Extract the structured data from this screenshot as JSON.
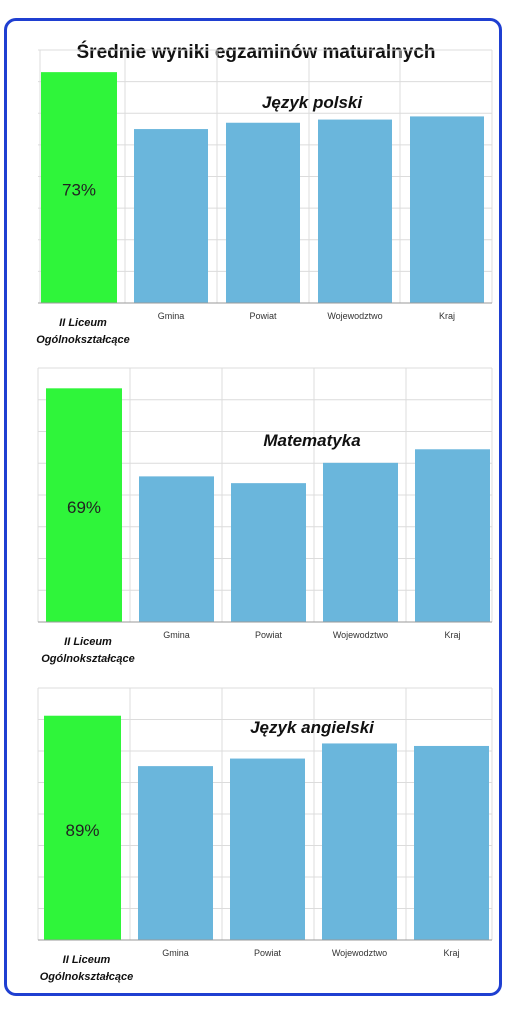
{
  "title": "Średnie wyniki egzaminów maturalnych",
  "colors": {
    "school": "#2ff53a",
    "other": "#6ab6dc",
    "grid": "#dcdcdc",
    "frame": "#1f3fd1"
  },
  "chart_data": [
    {
      "type": "bar",
      "subtitle": "Język polski",
      "categories": [
        "II Liceum Ogólnokształcące",
        "Gmina",
        "Powiat",
        "Wojewodztwo",
        "Kraj"
      ],
      "school_label": [
        "II Liceum",
        "Ogólnokształcące"
      ],
      "value_label": "73%",
      "values": [
        73,
        55,
        57,
        58,
        59
      ],
      "ylim": [
        0,
        80
      ],
      "grid": true
    },
    {
      "type": "bar",
      "subtitle": "Matematyka",
      "categories": [
        "II Liceum Ogólnokształcące",
        "Gmina",
        "Powiat",
        "Wojewodztwo",
        "Kraj"
      ],
      "school_label": [
        "II Liceum",
        "Ogólnokształcące"
      ],
      "value_label": "69%",
      "values": [
        69,
        43,
        41,
        47,
        51
      ],
      "ylim": [
        0,
        75
      ],
      "grid": true
    },
    {
      "type": "bar",
      "subtitle": "Język angielski",
      "categories": [
        "II Liceum Ogólnokształcące",
        "Gmina",
        "Powiat",
        "Wojewodztwo",
        "Kraj"
      ],
      "school_label": [
        "II Liceum",
        "Ogólnokształcące"
      ],
      "value_label": "89%",
      "values": [
        89,
        69,
        72,
        78,
        77
      ],
      "ylim": [
        0,
        100
      ],
      "grid": true
    }
  ]
}
